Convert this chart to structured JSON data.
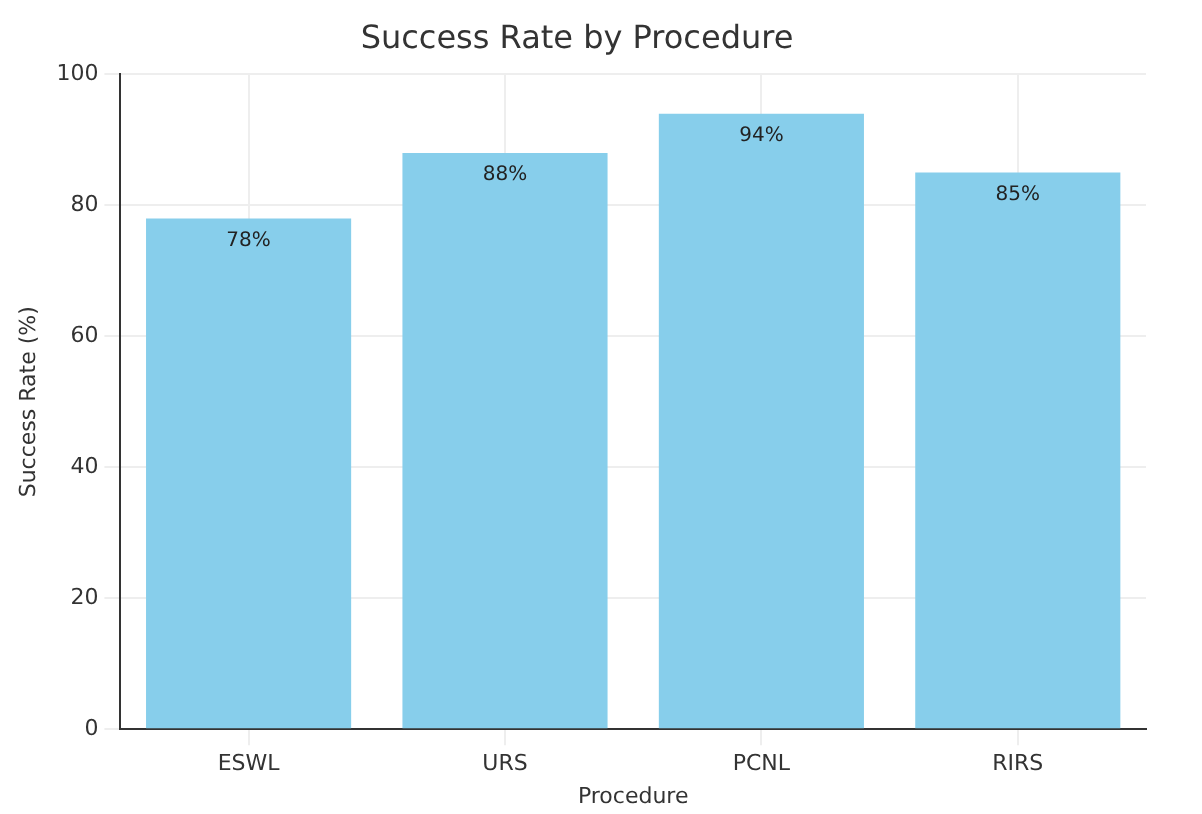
{
  "chart_data": {
    "type": "bar",
    "title": "Success Rate by Procedure",
    "xlabel": "Procedure",
    "ylabel": "Success Rate (%)",
    "categories": [
      "ESWL",
      "URS",
      "PCNL",
      "RIRS"
    ],
    "values": [
      78,
      88,
      94,
      85
    ],
    "color": "#87ceeb",
    "value_labels": [
      "78%",
      "88%",
      "94%",
      "85%"
    ],
    "ylim": [
      0,
      100
    ],
    "yticks": [
      0,
      20,
      40,
      60,
      80,
      100
    ],
    "grid": true
  }
}
